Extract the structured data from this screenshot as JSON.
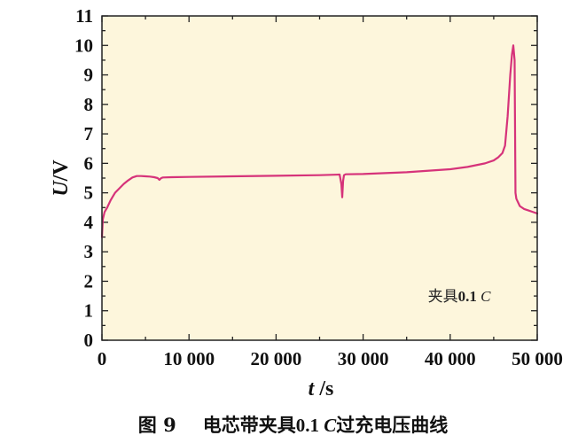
{
  "chart_data": {
    "type": "line",
    "xlabel": "t /s",
    "xlabel_var": "t",
    "xlabel_unit": " /s",
    "ylabel": "U/V",
    "ylabel_var": "U",
    "ylabel_unit": "/V",
    "xlim": [
      0,
      50000
    ],
    "ylim": [
      0,
      11
    ],
    "xticks": [
      "0",
      "10 000",
      "20 000",
      "30 000",
      "40 000",
      "50 000"
    ],
    "xtick_values": [
      0,
      10000,
      20000,
      30000,
      40000,
      50000
    ],
    "yticks": [
      "0",
      "1",
      "2",
      "3",
      "4",
      "5",
      "6",
      "7",
      "8",
      "9",
      "10",
      "11"
    ],
    "ytick_values": [
      0,
      1,
      2,
      3,
      4,
      5,
      6,
      7,
      8,
      9,
      10,
      11
    ],
    "grid": false,
    "background": "#fdf6dc",
    "line_color": "#d6337a",
    "legend": {
      "placement": "bottom-right",
      "text_prefix": "夹具",
      "text_num": "0.1 ",
      "text_var": "C"
    },
    "series": [
      {
        "x": [
          0,
          100,
          300,
          600,
          1000,
          1500,
          2000,
          2500,
          3000,
          3500,
          4000,
          4500,
          5000,
          5500,
          6000,
          6400,
          6600,
          6800,
          7000,
          8000,
          10000,
          15000,
          20000,
          25000,
          27300,
          27500,
          27600,
          27700,
          27800,
          28000,
          30000,
          35000,
          40000,
          42000,
          44000,
          45000,
          45500,
          46000,
          46300,
          46600,
          46900,
          47100,
          47250,
          47400,
          47500,
          47600,
          48000,
          48500,
          49000,
          49500,
          50000
        ],
        "y": [
          3.5,
          4.1,
          4.35,
          4.5,
          4.75,
          5.0,
          5.15,
          5.3,
          5.42,
          5.52,
          5.57,
          5.57,
          5.56,
          5.55,
          5.53,
          5.5,
          5.44,
          5.5,
          5.52,
          5.53,
          5.54,
          5.56,
          5.58,
          5.6,
          5.62,
          5.3,
          4.85,
          5.4,
          5.6,
          5.63,
          5.64,
          5.7,
          5.8,
          5.88,
          6.0,
          6.1,
          6.2,
          6.35,
          6.6,
          7.6,
          9.0,
          9.7,
          10.0,
          9.5,
          5.0,
          4.8,
          4.55,
          4.45,
          4.4,
          4.35,
          4.3
        ]
      }
    ]
  },
  "caption": {
    "figure_label": "图 9",
    "text_prefix": "电芯带夹具",
    "text_num": "0.1 ",
    "text_var": "C",
    "text_suffix": "过充电压曲线"
  }
}
